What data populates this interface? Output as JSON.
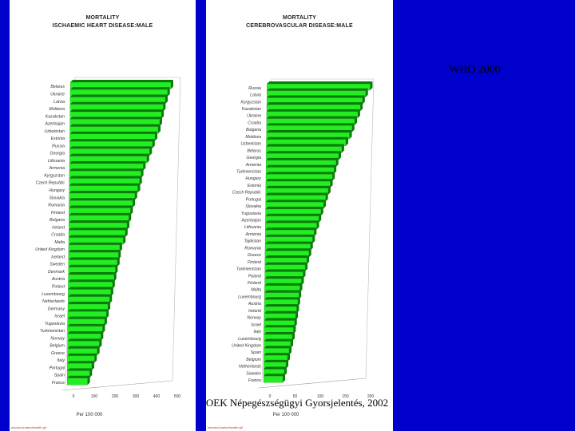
{
  "who_label": "WHO 2000",
  "source_label": "OEK Népegészségügyi Gyorsjelentés, 2002",
  "colors": {
    "background": "#0000cc",
    "bar": "#22ee22",
    "bar_dark": "#0a7a0a",
    "panel": "#ffffff"
  },
  "chart_data": [
    {
      "type": "bar",
      "orientation": "horizontal",
      "title": [
        "MORTALITY",
        "ISCHAEMIC HEART DISEASE:MALE"
      ],
      "categories": [
        "Belarus",
        "Ukraine",
        "Latvia",
        "Moldova",
        "Kazakstan",
        "Azerbaijan",
        "Uzbekistan",
        "Estonia",
        "Russia",
        "Georgia",
        "Lithuania",
        "Armenia",
        "Kyrgyzstan",
        "Czech Republic",
        "Hungary",
        "Slovakia",
        "Romania",
        "Finland",
        "Bulgaria",
        "Ireland",
        "Croatia",
        "Malta",
        "United Kingdom",
        "Iceland",
        "Sweden",
        "Denmark",
        "Austria",
        "Poland",
        "Luxembourg",
        "Netherlands",
        "Germany",
        "Israel",
        "Yugoslavia",
        "Turkmenistan",
        "Norway",
        "Belgium",
        "Greece",
        "Italy",
        "Portugal",
        "Spain",
        "France"
      ],
      "values": [
        484,
        468,
        458,
        448,
        440,
        432,
        425,
        410,
        398,
        385,
        372,
        355,
        345,
        338,
        330,
        316,
        306,
        296,
        288,
        280,
        272,
        262,
        246,
        240,
        235,
        226,
        220,
        213,
        206,
        200,
        192,
        185,
        177,
        168,
        160,
        153,
        143,
        130,
        118,
        108,
        98
      ],
      "xticks": [
        "0",
        "100",
        "200",
        "300",
        "400",
        "500"
      ],
      "xlim": [
        0,
        500
      ],
      "xlabel": "Per 100 000",
      "footer": "whosis/chartsofhealth.gif"
    },
    {
      "type": "bar",
      "orientation": "horizontal",
      "title": [
        "MORTALITY",
        "CEREBROVASCULAR DISEASE:MALE"
      ],
      "categories": [
        "Russia",
        "Latvia",
        "Kyrgyzstan",
        "Kazakstan",
        "Ukraine",
        "Croatia",
        "Bulgaria",
        "Moldova",
        "Uzbekistan",
        "Belarus",
        "Georgia",
        "Armenia",
        "Turkmenistan",
        "Hungary",
        "Estonia",
        "Czech Republic",
        "Portugal",
        "Slovakia",
        "Yugoslavia",
        "Azerbaijan",
        "Lithuania",
        "Armenia",
        "Tajikistan",
        "Romania",
        "Greece",
        "Finland",
        "Turkmenistan",
        "Poland",
        "Finland",
        "Malta",
        "Luxembourg",
        "Austria",
        "Ireland",
        "Norway",
        "Israel",
        "Italy",
        "Luxembourg",
        "United Kingdom",
        "Spain",
        "Belgium",
        "Netherlands",
        "Sweden",
        "France"
      ],
      "values": [
        205,
        196,
        190,
        186,
        181,
        175,
        170,
        165,
        158,
        150,
        144,
        139,
        135,
        132,
        128,
        124,
        119,
        115,
        110,
        106,
        102,
        97,
        94,
        90,
        87,
        83,
        80,
        76,
        73,
        70,
        68,
        66,
        64,
        62,
        60,
        58,
        56,
        53,
        50,
        47,
        44,
        41,
        38
      ],
      "xticks": [
        "0",
        "50",
        "100",
        "150",
        "200"
      ],
      "xlim": [
        0,
        200
      ],
      "xlabel": "Per 100 000",
      "footer": "whosis/chartsofhealth.gif"
    }
  ]
}
